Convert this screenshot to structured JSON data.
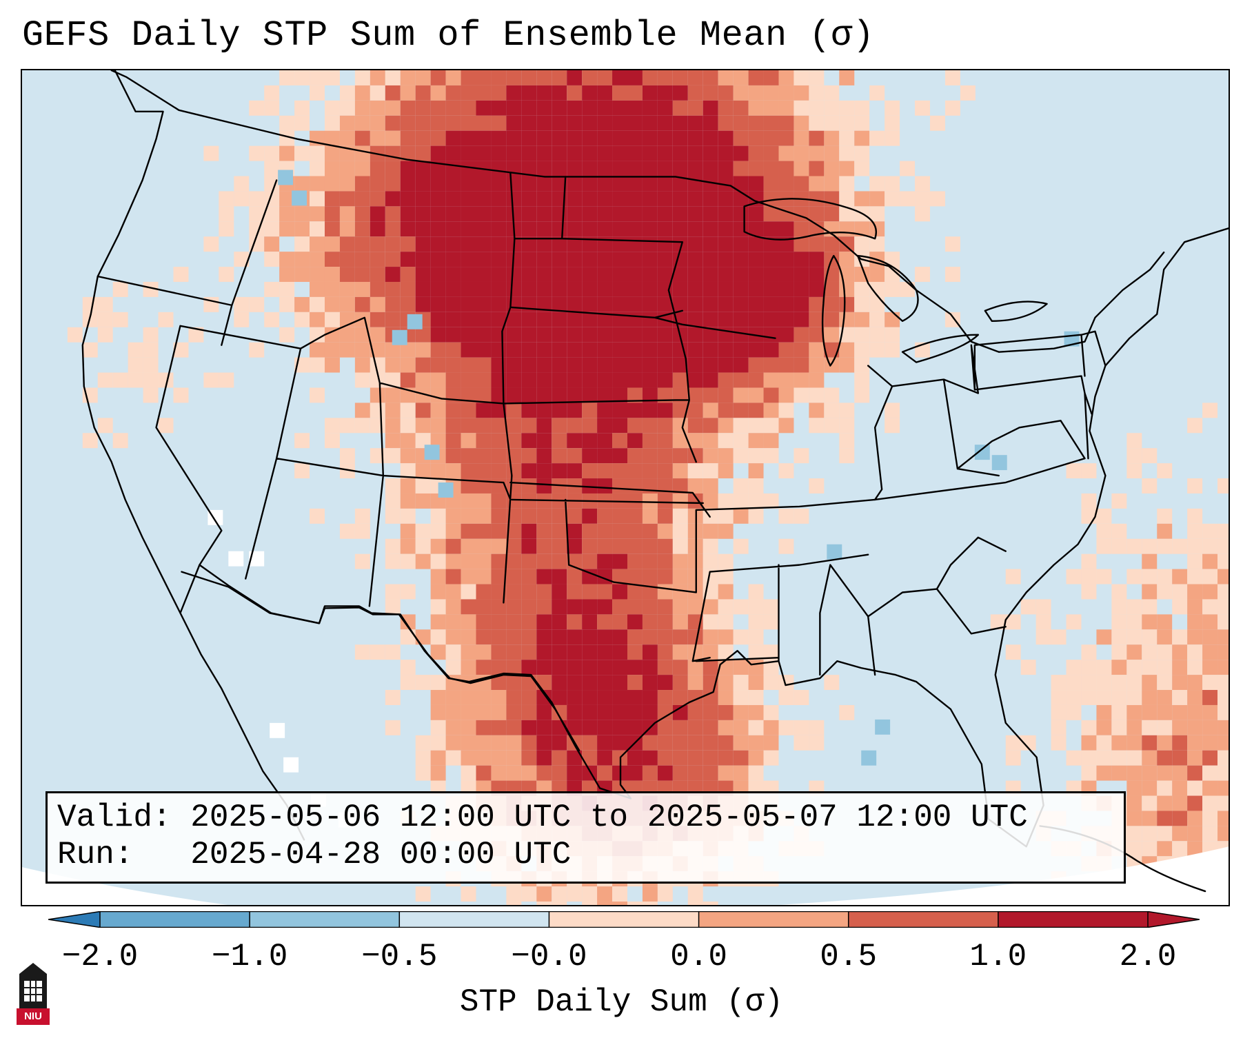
{
  "title": "GEFS Daily STP Sum of Ensemble Mean (σ)",
  "info": {
    "valid_line": "Valid: 2025-05-06 12:00 UTC to 2025-05-07 12:00 UTC",
    "run_line": "Run:   2025-04-28 00:00 UTC"
  },
  "colorbar": {
    "label": "STP Daily Sum (σ)",
    "ticks": [
      "−2.0",
      "−1.0",
      "−0.5",
      "−0.0",
      "0.0",
      "0.5",
      "1.0",
      "2.0"
    ],
    "bin_colors": [
      "#2c7bb6",
      "#67a9cf",
      "#92c5de",
      "#d1e5f0",
      "#fddbc7",
      "#f4a582",
      "#d6604d",
      "#b2182b"
    ],
    "extend": "both"
  },
  "map": {
    "region": "Continental United States",
    "ocean_color": "#d1e5f0",
    "border_color": "#000000"
  },
  "logo": {
    "text": "NIU",
    "icon": "niu-tower-icon"
  }
}
